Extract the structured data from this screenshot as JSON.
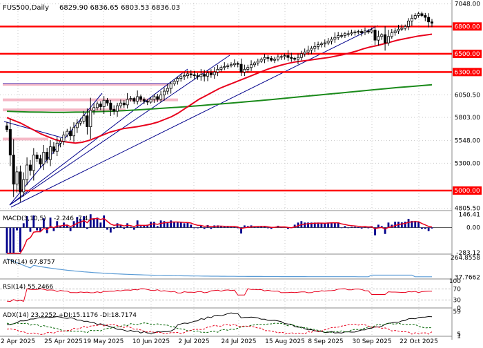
{
  "header": {
    "symbol": "FUS500",
    "timeframe": "Daily",
    "ohlc": "6829.90 6836.65 6803.53 6836.03"
  },
  "colors": {
    "candle": "#000000",
    "resistance": "#ff0000",
    "ma_fast": "#e8001c",
    "ma_slow": "#1a8a1a",
    "trendline": "#00008b",
    "zone": "#f2a6b8",
    "zone_blue": "#5050c8",
    "macd_hist": "#00008b",
    "macd_signal": "#e8001c",
    "atr": "#5a9bd5",
    "rsi": "#e8001c",
    "adx": "#000000",
    "di_plus": "#006400",
    "di_minus": "#e8001c",
    "grid": "#c8c8c8"
  },
  "chart_data": [
    {
      "type": "candlestick",
      "panel": "price",
      "x_labels": [
        "2 Apr 2025",
        "25 Apr 2025",
        "19 May 2025",
        "10 Jun 2025",
        "2 Jul 2025",
        "24 Jul 2025",
        "15 Aug 2025",
        "8 Sep 2025",
        "30 Sep 2025",
        "22 Oct 2025"
      ],
      "y_ticks": [
        "7048.00",
        "6050.50",
        "5803.00",
        "5548.00",
        "5300.00",
        "4805.50"
      ],
      "ylim": [
        4780,
        7060
      ],
      "levels": [
        {
          "label": "6800.00",
          "value": 6800
        },
        {
          "label": "6500.00",
          "value": 6500
        },
        {
          "label": "6300.00",
          "value": 6300
        },
        {
          "label": "5000.00",
          "value": 5000
        }
      ],
      "closes": [
        5670,
        5390,
        5070,
        5205,
        4985,
        5120,
        5280,
        5220,
        5390,
        5350,
        5290,
        5420,
        5340,
        5480,
        5430,
        5520,
        5540,
        5610,
        5650,
        5600,
        5690,
        5740,
        5760,
        5820,
        5700,
        5880,
        5910,
        5950,
        5920,
        5990,
        5960,
        5890,
        5870,
        5930,
        5960,
        5940,
        6000,
        6010,
        5980,
        6030,
        6000,
        5980,
        5970,
        6000,
        6030,
        6000,
        6050,
        6090,
        6120,
        6170,
        6200,
        6230,
        6250,
        6260,
        6280,
        6270,
        6260,
        6250,
        6275,
        6255,
        6290,
        6270,
        6300,
        6330,
        6350,
        6360,
        6370,
        6380,
        6395,
        6385,
        6300,
        6330,
        6350,
        6380,
        6400,
        6420,
        6440,
        6460,
        6450,
        6430,
        6440,
        6465,
        6470,
        6480,
        6460,
        6450,
        6440,
        6460,
        6500,
        6520,
        6540,
        6560,
        6580,
        6600,
        6610,
        6620,
        6640,
        6660,
        6680,
        6700,
        6700,
        6720,
        6720,
        6730,
        6740,
        6745,
        6730,
        6750,
        6740,
        6760,
        6650,
        6690,
        6710,
        6620,
        6690,
        6730,
        6750,
        6770,
        6780,
        6800,
        6860,
        6890,
        6920,
        6940,
        6920,
        6900,
        6850,
        6836
      ],
      "ma_fast": [
        5800,
        5770,
        5740,
        5700,
        5660,
        5620,
        5590,
        5560,
        5540,
        5530,
        5520,
        5530,
        5550,
        5580,
        5610,
        5640,
        5660,
        5680,
        5690,
        5700,
        5715,
        5730,
        5750,
        5780,
        5810,
        5850,
        5900,
        5950,
        6000,
        6040,
        6080,
        6120,
        6150,
        6180,
        6210,
        6240,
        6270,
        6300,
        6330,
        6355,
        6375,
        6395,
        6410,
        6420,
        6430,
        6440,
        6450,
        6460,
        6475,
        6490,
        6510,
        6530,
        6555,
        6575,
        6590,
        6610,
        6630,
        6650,
        6665,
        6680,
        6695,
        6705,
        6715
      ],
      "ma_slow": [
        5870,
        5865,
        5862,
        5860,
        5858,
        5858,
        5860,
        5862,
        5866,
        5870,
        5875,
        5882,
        5890,
        5898,
        5906,
        5915,
        5924,
        5934,
        5944,
        5954,
        5965,
        5976,
        5987,
        5998,
        6010,
        6022,
        6034,
        6046,
        6058,
        6070,
        6082,
        6094,
        6106,
        6118,
        6130,
        6140,
        6150,
        6160
      ],
      "zones": [
        {
          "from": 6150,
          "to": 6180
        },
        {
          "from": 5990,
          "to": 6010
        },
        {
          "from": 5870,
          "to": 5900
        },
        {
          "from": 5560,
          "to": 5580
        }
      ]
    },
    {
      "type": "histogram",
      "panel": "macd",
      "label": "MACD(3,10,5)",
      "value_text": "-2.246 -7.4...",
      "y_ticks": [
        "146.41",
        "0.00",
        "-283.12"
      ],
      "ylim": [
        -300,
        160
      ]
    },
    {
      "type": "line",
      "panel": "atr",
      "label": "ATR(14) 67.8757",
      "y_ticks": [
        "264.8558",
        "37.7662"
      ],
      "ylim": [
        20,
        280
      ]
    },
    {
      "type": "line",
      "panel": "rsi",
      "label": "RSI(14) 55.2466",
      "y_ticks": [
        "100",
        "70",
        "30",
        "0"
      ],
      "ylim": [
        0,
        100
      ]
    },
    {
      "type": "line",
      "panel": "adx",
      "label": "ADX(14) 23.2252 +DI:15.1176 -DI:18.7174",
      "y_ticks": [
        "59",
        "5",
        "1"
      ],
      "ylim": [
        0,
        62
      ]
    }
  ]
}
